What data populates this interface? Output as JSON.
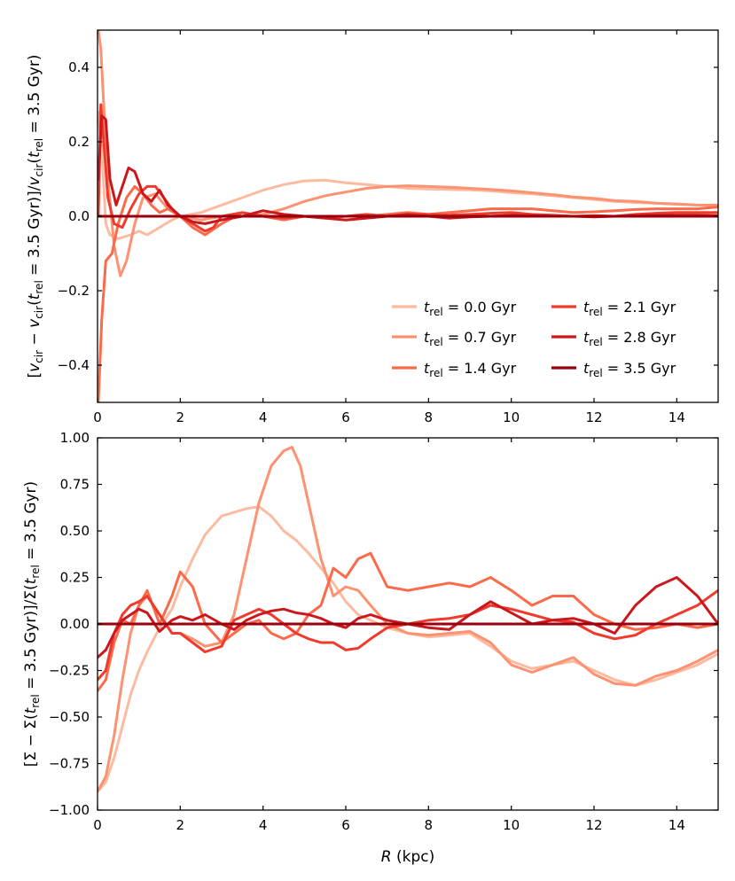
{
  "series_colors": [
    "#fcbba1",
    "#fc9272",
    "#fb6a4a",
    "#ef3b2c",
    "#cb181d",
    "#99000d"
  ],
  "chart_data": [
    {
      "type": "line",
      "title": "",
      "xlabel": "",
      "ylabel": "[v_cir − v_cir(t_rel = 3.5 Gyr)]/v_cir(t_rel = 3.5 Gyr)",
      "ylabel_parts": {
        "open": "[",
        "v1": "v",
        "cir1": "cir",
        "minus": " − ",
        "v2": "v",
        "cir2": "cir",
        "paren1": "(",
        "t1": "t",
        "rel1": "rel",
        "eq1": " = 3.5 Gyr)]/",
        "v3": "v",
        "cir3": "cir",
        "paren2": "(",
        "t2": "t",
        "rel2": "rel",
        "eq2": " = 3.5 Gyr)"
      },
      "xlim": [
        0,
        15
      ],
      "ylim": [
        -0.5,
        0.5
      ],
      "xticks": [
        0,
        2,
        4,
        6,
        8,
        10,
        12,
        14
      ],
      "xtick_labels": [
        "0",
        "2",
        "4",
        "6",
        "8",
        "10",
        "12",
        "14"
      ],
      "yticks": [
        -0.4,
        -0.2,
        0.0,
        0.2,
        0.4
      ],
      "ytick_labels": [
        "−0.4",
        "−0.2",
        "0.0",
        "0.2",
        "0.4"
      ],
      "legend_position": "lower-right",
      "series": [
        {
          "name": "t_rel = 0.0 Gyr",
          "label_t": "t",
          "label_sub": "rel",
          "label_rest": " = 0.0 Gyr",
          "x": [
            0.02,
            0.1,
            0.2,
            0.3,
            0.5,
            0.8,
            1.0,
            1.2,
            1.5,
            1.8,
            2.0,
            2.5,
            3.0,
            3.5,
            4.0,
            4.5,
            5.0,
            5.5,
            6.0,
            6.5,
            7.0,
            7.5,
            8.0,
            8.5,
            9.0,
            9.5,
            10.0,
            10.5,
            11.0,
            11.5,
            12.0,
            12.5,
            13.0,
            13.5,
            14.0,
            14.5,
            15.0
          ],
          "y": [
            0.28,
            0.18,
            -0.02,
            -0.05,
            -0.06,
            -0.05,
            -0.04,
            -0.05,
            -0.03,
            -0.01,
            0.0,
            0.01,
            0.03,
            0.05,
            0.07,
            0.085,
            0.095,
            0.097,
            0.09,
            0.085,
            0.08,
            0.075,
            0.073,
            0.072,
            0.071,
            0.068,
            0.063,
            0.06,
            0.055,
            0.05,
            0.045,
            0.04,
            0.037,
            0.035,
            0.032,
            0.03,
            0.028
          ]
        },
        {
          "name": "t_rel = 0.7 Gyr",
          "label_t": "t",
          "label_sub": "rel",
          "label_rest": " = 0.7 Gyr",
          "x": [
            0.02,
            0.08,
            0.15,
            0.25,
            0.4,
            0.55,
            0.7,
            0.9,
            1.1,
            1.4,
            1.7,
            2.0,
            2.5,
            3.0,
            3.5,
            4.0,
            4.5,
            5.0,
            5.5,
            6.0,
            6.5,
            7.0,
            7.5,
            8.0,
            8.5,
            9.0,
            9.5,
            10.0,
            10.5,
            11.0,
            11.5,
            12.0,
            12.5,
            13.0,
            13.5,
            14.0,
            14.5,
            15.0
          ],
          "y": [
            0.5,
            0.45,
            0.3,
            0.1,
            -0.08,
            -0.16,
            -0.12,
            -0.02,
            0.05,
            0.06,
            0.02,
            0.0,
            -0.01,
            0.0,
            0.0,
            0.005,
            0.02,
            0.04,
            0.055,
            0.065,
            0.075,
            0.08,
            0.082,
            0.08,
            0.078,
            0.075,
            0.072,
            0.068,
            0.063,
            0.058,
            0.052,
            0.048,
            0.042,
            0.04,
            0.035,
            0.033,
            0.03,
            0.03
          ]
        },
        {
          "name": "t_rel = 1.4 Gyr",
          "label_t": "t",
          "label_sub": "rel",
          "label_rest": " = 1.4 Gyr",
          "x": [
            0.02,
            0.1,
            0.2,
            0.35,
            0.5,
            0.7,
            0.9,
            1.1,
            1.3,
            1.5,
            1.7,
            2.0,
            2.3,
            2.6,
            3.0,
            3.5,
            4.0,
            4.5,
            5.0,
            5.5,
            6.0,
            6.5,
            7.0,
            7.5,
            8.0,
            8.5,
            9.0,
            9.5,
            10.0,
            10.5,
            11.0,
            11.5,
            12.0,
            12.5,
            13.0,
            13.5,
            14.0,
            14.5,
            15.0
          ],
          "y": [
            -0.5,
            -0.28,
            -0.12,
            -0.1,
            -0.02,
            0.05,
            0.08,
            0.06,
            0.03,
            0.01,
            0.02,
            0.0,
            -0.03,
            -0.05,
            -0.02,
            0.01,
            0.0,
            -0.01,
            0.0,
            -0.005,
            0.0,
            0.0,
            0.005,
            0.01,
            0.005,
            0.01,
            0.015,
            0.02,
            0.02,
            0.02,
            0.015,
            0.01,
            0.012,
            0.015,
            0.018,
            0.02,
            0.02,
            0.02,
            0.025
          ]
        },
        {
          "name": "t_rel = 2.1 Gyr",
          "label_t": "t",
          "label_sub": "rel",
          "label_rest": " = 2.1 Gyr",
          "x": [
            0.02,
            0.08,
            0.15,
            0.25,
            0.4,
            0.6,
            0.8,
            1.0,
            1.2,
            1.4,
            1.6,
            1.8,
            2.0,
            2.3,
            2.6,
            2.8,
            3.0,
            3.5,
            4.0,
            4.5,
            5.0,
            5.5,
            6.0,
            6.5,
            7.0,
            7.5,
            8.0,
            8.5,
            9.0,
            9.5,
            10.0,
            10.5,
            11.0,
            11.5,
            12.0,
            12.5,
            13.0,
            13.5,
            14.0,
            14.5,
            15.0
          ],
          "y": [
            0.0,
            0.3,
            0.2,
            0.05,
            -0.02,
            -0.03,
            0.02,
            0.06,
            0.08,
            0.08,
            0.05,
            0.02,
            0.0,
            -0.02,
            -0.04,
            -0.03,
            0.0,
            0.01,
            0.0,
            -0.005,
            0.0,
            0.0,
            0.0,
            0.005,
            0.0,
            0.005,
            0.005,
            0.003,
            0.005,
            0.008,
            0.01,
            0.005,
            0.003,
            0.0,
            0.002,
            0.0,
            0.005,
            0.008,
            0.01,
            0.01,
            0.01
          ]
        },
        {
          "name": "t_rel = 2.8 Gyr",
          "label_t": "t",
          "label_sub": "rel",
          "label_rest": " = 2.8 Gyr",
          "x": [
            0.02,
            0.1,
            0.2,
            0.3,
            0.45,
            0.6,
            0.75,
            0.9,
            1.1,
            1.3,
            1.5,
            1.7,
            2.0,
            2.3,
            2.6,
            3.0,
            3.5,
            4.0,
            4.5,
            5.0,
            5.5,
            6.0,
            6.5,
            7.0,
            7.5,
            8.0,
            8.5,
            9.0,
            9.5,
            10.0,
            10.5,
            11.0,
            11.5,
            12.0,
            12.5,
            13.0,
            13.5,
            14.0,
            14.5,
            15.0
          ],
          "y": [
            0.1,
            0.27,
            0.26,
            0.1,
            0.03,
            0.08,
            0.13,
            0.12,
            0.06,
            0.04,
            0.07,
            0.03,
            0.0,
            -0.015,
            -0.02,
            -0.01,
            0.0,
            0.015,
            0.005,
            0.0,
            -0.005,
            -0.01,
            -0.005,
            0.0,
            0.005,
            0.0,
            -0.005,
            -0.002,
            0.0,
            0.003,
            0.002,
            0.0,
            0.0,
            -0.002,
            0.0,
            0.002,
            0.003,
            0.003,
            0.003,
            0.002
          ]
        },
        {
          "name": "t_rel = 3.5 Gyr",
          "label_t": "t",
          "label_sub": "rel",
          "label_rest": " = 3.5 Gyr",
          "x": [
            0,
            15
          ],
          "y": [
            0.0,
            0.0
          ]
        }
      ]
    },
    {
      "type": "line",
      "title": "",
      "xlabel": "R (kpc)",
      "xlabel_parts": {
        "r": "R",
        "rest": " (kpc)"
      },
      "ylabel": "[Σ − Σ(t_rel = 3.5 Gyr)]/Σ(t_rel = 3.5 Gyr)",
      "ylabel_parts": {
        "part1": "[Σ − Σ(",
        "t1": "t",
        "rel1": "rel",
        "part2": " = 3.5 Gyr)]/Σ(",
        "t2": "t",
        "rel2": "rel",
        "part3": " = 3.5 Gyr)"
      },
      "xlim": [
        0,
        15
      ],
      "ylim": [
        -1.0,
        1.0
      ],
      "xticks": [
        0,
        2,
        4,
        6,
        8,
        10,
        12,
        14
      ],
      "xtick_labels": [
        "0",
        "2",
        "4",
        "6",
        "8",
        "10",
        "12",
        "14"
      ],
      "yticks": [
        -1.0,
        -0.75,
        -0.5,
        -0.25,
        0.0,
        0.25,
        0.5,
        0.75,
        1.0
      ],
      "ytick_labels": [
        "−1.00",
        "−0.75",
        "−0.50",
        "−0.25",
        "0.00",
        "0.25",
        "0.50",
        "0.75",
        "1.00"
      ],
      "series": [
        {
          "name": "t_rel = 0.0 Gyr",
          "x": [
            0.0,
            0.2,
            0.4,
            0.6,
            0.8,
            1.0,
            1.2,
            1.5,
            1.8,
            2.0,
            2.3,
            2.6,
            3.0,
            3.3,
            3.6,
            3.9,
            4.2,
            4.5,
            4.8,
            5.1,
            5.4,
            5.7,
            6.0,
            6.3,
            6.6,
            7.0,
            7.5,
            8.0,
            8.5,
            9.0,
            9.5,
            10.0,
            10.5,
            11.0,
            11.5,
            12.0,
            12.5,
            13.0,
            13.5,
            14.0,
            14.5,
            15.0
          ],
          "y": [
            -0.9,
            -0.85,
            -0.72,
            -0.55,
            -0.38,
            -0.25,
            -0.15,
            -0.02,
            0.08,
            0.2,
            0.35,
            0.48,
            0.58,
            0.6,
            0.62,
            0.63,
            0.58,
            0.5,
            0.45,
            0.38,
            0.3,
            0.22,
            0.12,
            0.05,
            0.02,
            -0.02,
            -0.05,
            -0.07,
            -0.06,
            -0.05,
            -0.12,
            -0.2,
            -0.24,
            -0.22,
            -0.2,
            -0.25,
            -0.3,
            -0.33,
            -0.3,
            -0.26,
            -0.22,
            -0.16
          ]
        },
        {
          "name": "t_rel = 0.7 Gyr",
          "x": [
            0.0,
            0.2,
            0.4,
            0.6,
            0.8,
            1.0,
            1.2,
            1.5,
            1.8,
            2.0,
            2.3,
            2.6,
            3.0,
            3.3,
            3.6,
            3.9,
            4.2,
            4.5,
            4.7,
            4.9,
            5.1,
            5.4,
            5.7,
            6.0,
            6.3,
            6.6,
            7.0,
            7.5,
            8.0,
            8.5,
            9.0,
            9.5,
            10.0,
            10.5,
            11.0,
            11.5,
            12.0,
            12.5,
            13.0,
            13.5,
            14.0,
            14.5,
            15.0
          ],
          "y": [
            -0.9,
            -0.82,
            -0.6,
            -0.3,
            -0.05,
            0.1,
            0.15,
            0.05,
            -0.05,
            -0.05,
            -0.08,
            -0.12,
            -0.1,
            0.05,
            0.35,
            0.65,
            0.85,
            0.93,
            0.95,
            0.85,
            0.65,
            0.35,
            0.15,
            0.2,
            0.18,
            0.1,
            0.0,
            -0.05,
            -0.06,
            -0.05,
            -0.04,
            -0.1,
            -0.22,
            -0.26,
            -0.22,
            -0.18,
            -0.27,
            -0.32,
            -0.33,
            -0.28,
            -0.25,
            -0.2,
            -0.14
          ]
        },
        {
          "name": "t_rel = 1.4 Gyr",
          "x": [
            0.0,
            0.2,
            0.4,
            0.6,
            0.8,
            1.0,
            1.2,
            1.5,
            1.8,
            2.0,
            2.3,
            2.6,
            3.0,
            3.3,
            3.6,
            3.9,
            4.2,
            4.5,
            4.8,
            5.1,
            5.4,
            5.7,
            6.0,
            6.3,
            6.6,
            7.0,
            7.5,
            8.0,
            8.5,
            9.0,
            9.5,
            10.0,
            10.5,
            11.0,
            11.5,
            12.0,
            12.5,
            13.0,
            13.5,
            14.0,
            14.5,
            15.0
          ],
          "y": [
            -0.36,
            -0.3,
            -0.1,
            0.02,
            0.0,
            0.1,
            0.18,
            0.0,
            0.15,
            0.28,
            0.2,
            0.0,
            -0.1,
            -0.05,
            0.0,
            0.02,
            -0.05,
            -0.08,
            -0.05,
            0.05,
            0.1,
            0.3,
            0.25,
            0.35,
            0.38,
            0.2,
            0.18,
            0.2,
            0.22,
            0.2,
            0.25,
            0.18,
            0.1,
            0.15,
            0.15,
            0.05,
            0.0,
            -0.03,
            -0.02,
            0.0,
            -0.02,
            0.0
          ]
        },
        {
          "name": "t_rel = 2.1 Gyr",
          "x": [
            0.0,
            0.2,
            0.4,
            0.6,
            0.8,
            1.0,
            1.2,
            1.5,
            1.8,
            2.0,
            2.3,
            2.6,
            3.0,
            3.3,
            3.6,
            3.9,
            4.2,
            4.5,
            4.8,
            5.1,
            5.4,
            5.7,
            6.0,
            6.3,
            6.6,
            7.0,
            7.5,
            8.0,
            8.5,
            9.0,
            9.5,
            10.0,
            10.5,
            11.0,
            11.5,
            12.0,
            12.5,
            13.0,
            13.5,
            14.0,
            14.5,
            15.0
          ],
          "y": [
            -0.3,
            -0.25,
            -0.05,
            0.05,
            0.1,
            0.12,
            0.15,
            0.05,
            -0.05,
            -0.05,
            -0.1,
            -0.15,
            -0.12,
            0.02,
            0.05,
            0.08,
            0.05,
            0.0,
            -0.05,
            -0.08,
            -0.1,
            -0.1,
            -0.14,
            -0.13,
            -0.08,
            -0.02,
            0.0,
            0.02,
            0.03,
            0.05,
            0.1,
            0.08,
            0.05,
            0.02,
            0.01,
            -0.05,
            -0.08,
            -0.06,
            0.0,
            0.05,
            0.1,
            0.18
          ]
        },
        {
          "name": "t_rel = 2.8 Gyr",
          "x": [
            0.0,
            0.2,
            0.4,
            0.6,
            0.8,
            1.0,
            1.2,
            1.5,
            1.8,
            2.0,
            2.3,
            2.6,
            3.0,
            3.3,
            3.6,
            3.9,
            4.2,
            4.5,
            4.8,
            5.1,
            5.4,
            5.7,
            6.0,
            6.3,
            6.6,
            7.0,
            7.5,
            8.0,
            8.5,
            9.0,
            9.5,
            10.0,
            10.5,
            11.0,
            11.5,
            12.0,
            12.5,
            13.0,
            13.5,
            14.0,
            14.5,
            15.0
          ],
          "y": [
            -0.18,
            -0.14,
            -0.05,
            0.02,
            0.05,
            0.08,
            0.06,
            -0.04,
            0.02,
            0.04,
            0.02,
            0.05,
            0.0,
            -0.03,
            0.02,
            0.05,
            0.07,
            0.08,
            0.06,
            0.05,
            0.03,
            0.0,
            -0.02,
            0.03,
            0.05,
            0.02,
            0.0,
            -0.02,
            -0.03,
            0.05,
            0.12,
            0.06,
            0.0,
            0.02,
            0.03,
            0.0,
            -0.05,
            0.1,
            0.2,
            0.25,
            0.15,
            0.0
          ]
        },
        {
          "name": "t_rel = 3.5 Gyr",
          "x": [
            0,
            15
          ],
          "y": [
            0.0,
            0.0
          ]
        }
      ]
    }
  ]
}
